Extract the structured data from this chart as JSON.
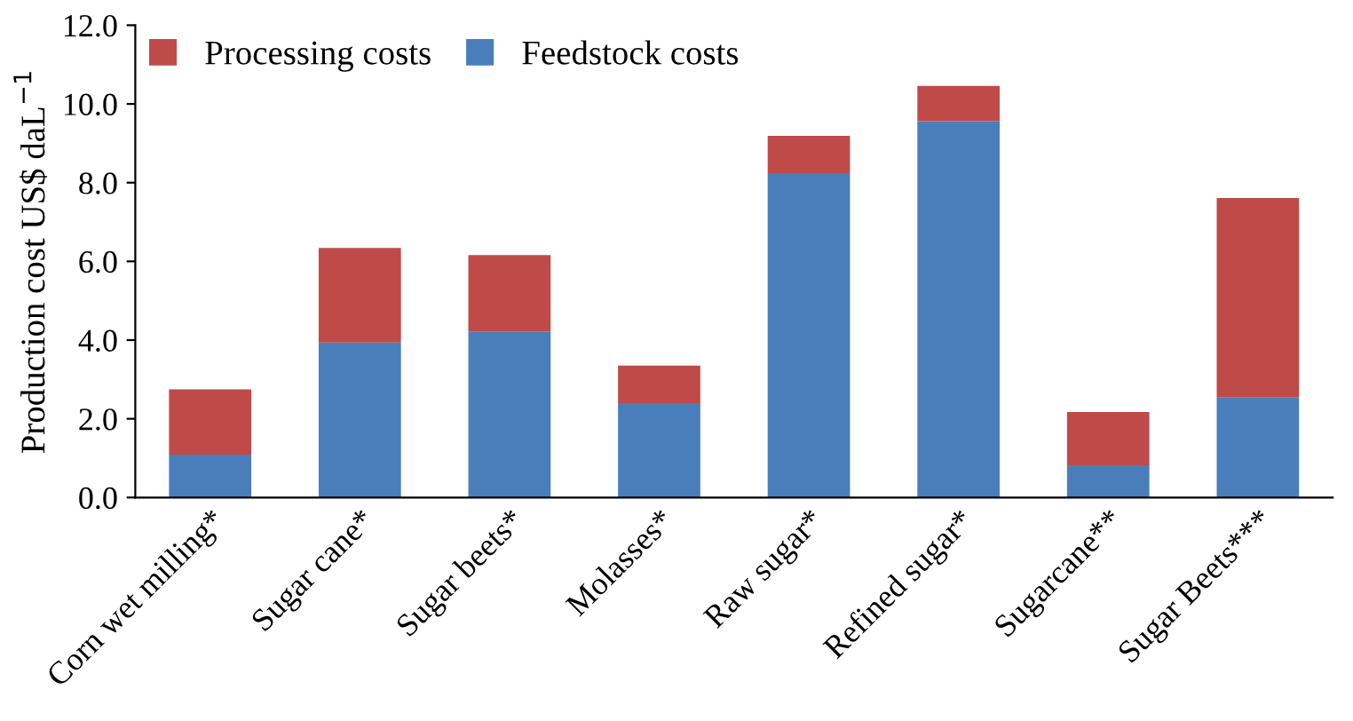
{
  "chart_data": {
    "type": "bar",
    "stacked": true,
    "ylabel": "Production cost US$ daL$^{−1}$",
    "categories": [
      "Corn wet milling*",
      "Sugar cane*",
      "Sugar beets*",
      "Molasses*",
      "Raw sugar*",
      "Refined sugar*",
      "Sugarcane**",
      "Sugar Beets***"
    ],
    "series": [
      {
        "name": "Feedstock costs",
        "color": "#4a7ebb",
        "values": [
          1.09,
          3.94,
          4.21,
          2.4,
          8.24,
          9.56,
          0.82,
          2.54
        ]
      },
      {
        "name": "Processing costs",
        "color": "#be4b48",
        "values": [
          1.66,
          2.4,
          1.95,
          0.95,
          0.95,
          0.9,
          1.35,
          5.07
        ]
      }
    ],
    "ylim": [
      0,
      12
    ],
    "yticks": [
      {
        "value": 0,
        "label": "0.0"
      },
      {
        "value": 2,
        "label": "2.0"
      },
      {
        "value": 4,
        "label": "4.0"
      },
      {
        "value": 6,
        "label": "6.0"
      },
      {
        "value": 8,
        "label": "8.0"
      },
      {
        "value": 10,
        "label": "10.0"
      },
      {
        "value": 12,
        "label": "12.0"
      }
    ],
    "grid": false,
    "legend": "top left"
  }
}
